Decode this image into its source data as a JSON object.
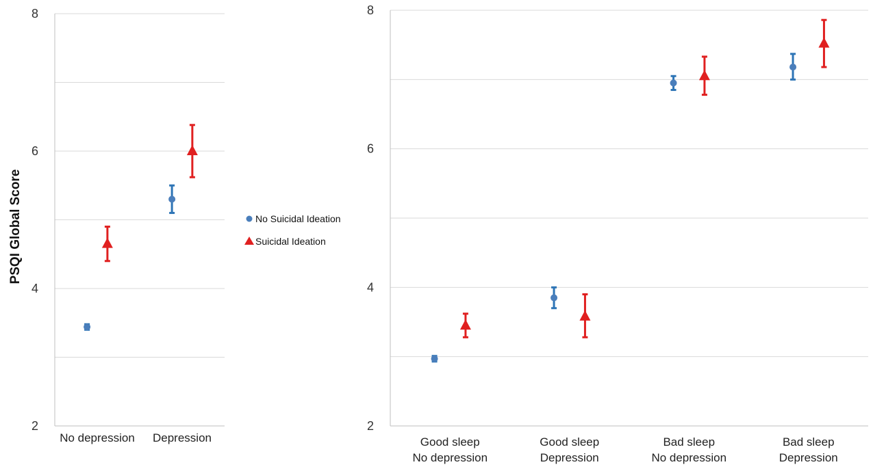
{
  "chart_data": [
    {
      "type": "scatter",
      "ylabel": "PSQI Global Score",
      "ylim": [
        2,
        8
      ],
      "yticks": [
        "2",
        "4",
        "6",
        "8"
      ],
      "grid": true,
      "categories": [
        [
          "No depression"
        ],
        [
          "Depression"
        ]
      ],
      "series": [
        {
          "name": "No Suicidal Ideation",
          "color": "#2E75B6",
          "marker": "circle",
          "values": [
            3.44,
            5.3
          ],
          "err_low": [
            3.4,
            5.1
          ],
          "err_high": [
            3.48,
            5.5
          ]
        },
        {
          "name": "Suicidal Ideation",
          "color": "#E02020",
          "marker": "triangle",
          "values": [
            4.65,
            6.0
          ],
          "err_low": [
            4.4,
            5.62
          ],
          "err_high": [
            4.9,
            6.38
          ]
        }
      ]
    },
    {
      "type": "scatter",
      "ylim": [
        2,
        8
      ],
      "yticks": [
        "2",
        "4",
        "6",
        "8"
      ],
      "grid": true,
      "categories": [
        [
          "Good sleep",
          "No depression"
        ],
        [
          "Good sleep",
          "Depression"
        ],
        [
          "Bad sleep",
          "No depression"
        ],
        [
          "Bad sleep",
          "Depression"
        ]
      ],
      "series": [
        {
          "name": "No Suicidal Ideation",
          "color": "#2E75B6",
          "marker": "circle",
          "values": [
            2.97,
            3.85,
            6.95,
            7.18
          ],
          "err_low": [
            2.93,
            3.7,
            6.85,
            7.0
          ],
          "err_high": [
            3.01,
            4.0,
            7.05,
            7.37
          ]
        },
        {
          "name": "Suicidal Ideation",
          "color": "#E02020",
          "marker": "triangle",
          "values": [
            3.45,
            3.58,
            7.05,
            7.52
          ],
          "err_low": [
            3.28,
            3.28,
            6.78,
            7.18
          ],
          "err_high": [
            3.62,
            3.9,
            7.33,
            7.86
          ]
        }
      ]
    }
  ],
  "legend": {
    "items": [
      {
        "label": "No Suicidal Ideation",
        "color": "#2E75B6",
        "marker": "circle"
      },
      {
        "label": "Suicidal Ideation",
        "color": "#E02020",
        "marker": "triangle"
      }
    ]
  }
}
